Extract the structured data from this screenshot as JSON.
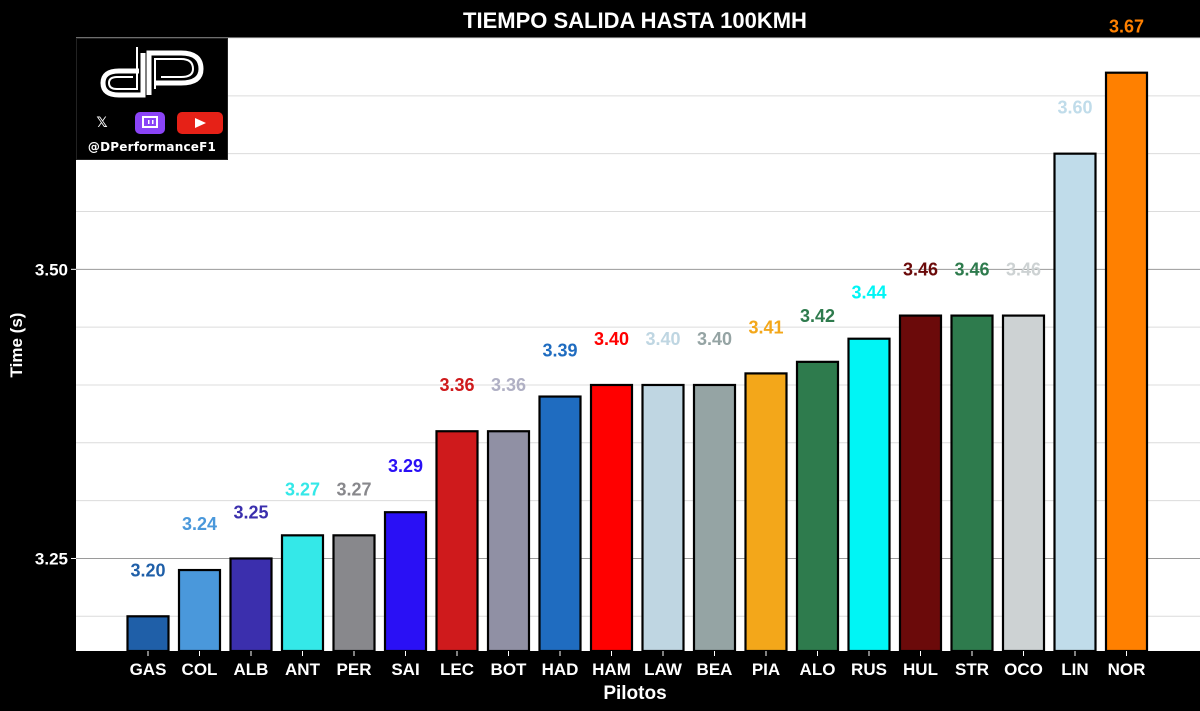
{
  "chart_data": {
    "type": "bar",
    "title": "TIEMPO SALIDA HASTA 100KMH",
    "xlabel": "Pilotos",
    "ylabel": "Time (s)",
    "ylim": [
      3.17,
      3.7
    ],
    "yticks": [
      3.25,
      3.5
    ],
    "grid": true,
    "categories": [
      "GAS",
      "COL",
      "ALB",
      "ANT",
      "PER",
      "SAI",
      "LEC",
      "BOT",
      "HAD",
      "HAM",
      "LAW",
      "BEA",
      "PIA",
      "ALO",
      "RUS",
      "HUL",
      "STR",
      "OCO",
      "LIN",
      "NOR"
    ],
    "values": [
      3.2,
      3.24,
      3.25,
      3.27,
      3.27,
      3.29,
      3.36,
      3.36,
      3.39,
      3.4,
      3.4,
      3.4,
      3.41,
      3.42,
      3.44,
      3.46,
      3.46,
      3.46,
      3.6,
      3.67
    ],
    "labels": [
      "3.20",
      "3.24",
      "3.25",
      "3.27",
      "3.27",
      "3.29",
      "3.36",
      "3.36",
      "3.39",
      "3.40",
      "3.40",
      "3.40",
      "3.41",
      "3.42",
      "3.44",
      "3.46",
      "3.46",
      "3.46",
      "3.60",
      "3.67"
    ],
    "colors": [
      "#1f5fa8",
      "#4a98db",
      "#3b2fad",
      "#34e8e8",
      "#88888c",
      "#2a10f5",
      "#cf1a1c",
      "#9090a4",
      "#1f6cc0",
      "#ff0000",
      "#bfd6e2",
      "#95a4a4",
      "#f3a71a",
      "#2e7b4d",
      "#00f5f5",
      "#6b0a0a",
      "#2e7b4d",
      "#cdd2d3",
      "#c0dcea",
      "#ff8000"
    ],
    "label_colors": [
      "#1f5fa8",
      "#4a98db",
      "#3b2fad",
      "#34e8e8",
      "#88888c",
      "#2a10f5",
      "#cf1a1c",
      "#b0b0c4",
      "#1f6cc0",
      "#ff0000",
      "#bfd6e2",
      "#95a4a4",
      "#f3a71a",
      "#2e7b4d",
      "#00f5f5",
      "#6b0a0a",
      "#2e7b4d",
      "#cdd2d3",
      "#c0dcea",
      "#ff8000"
    ]
  },
  "logo": {
    "handle": "@DPerformanceF1",
    "icons": [
      "x-icon",
      "twitch-icon",
      "youtube-icon"
    ],
    "colors": {
      "twitch": "#8b44f7",
      "youtube": "#e62117"
    }
  }
}
